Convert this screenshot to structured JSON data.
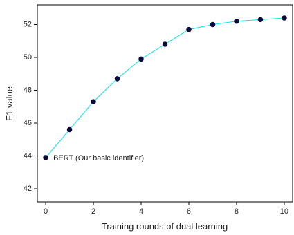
{
  "chart_data": {
    "type": "line",
    "title": "",
    "xlabel": "Training rounds of dual learning",
    "ylabel": "F1 value",
    "xlim": [
      -0.35,
      10.35
    ],
    "ylim": [
      41.2,
      53.2
    ],
    "x_ticks": [
      0,
      2,
      4,
      6,
      8,
      10
    ],
    "y_ticks": [
      42,
      44,
      46,
      48,
      50,
      52
    ],
    "grid": false,
    "series": [
      {
        "x": [
          0,
          1,
          2,
          3,
          4,
          5,
          6,
          7,
          8,
          9,
          10
        ],
        "values": [
          43.9,
          45.6,
          47.3,
          48.7,
          49.9,
          50.8,
          51.7,
          52.0,
          52.2,
          52.3,
          52.4
        ],
        "line_color": "#00e5ee",
        "marker_color": "#0a0a3a"
      }
    ],
    "annotations": [
      {
        "text": "BERT (Our basic identifier)",
        "x": 0,
        "y": 43.9
      }
    ]
  }
}
